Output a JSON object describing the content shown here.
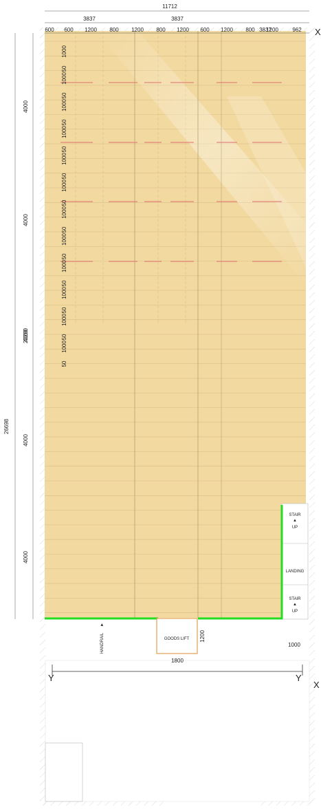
{
  "drawing": {
    "overall_width": "11712",
    "bay_width_top_left": "3837",
    "bay_width_top_mid": "3837",
    "bay_width_top_right": "3837",
    "segment_dims": [
      "600",
      "600",
      "1200",
      "800",
      "1200",
      "800",
      "1200",
      "600",
      "1200",
      "800",
      "1200",
      "962"
    ],
    "vertical_bay_labels": [
      "1000",
      "50",
      "1000",
      "50",
      "1000",
      "50",
      "1000",
      "50",
      "1000",
      "50",
      "1000",
      "50",
      "1000",
      "50",
      "1000",
      "50",
      "1000",
      "50",
      "1000",
      "50",
      "1000",
      "50",
      "1000",
      "50"
    ],
    "left_dims": [
      "4000",
      "4000",
      "4000",
      "4000",
      "4000"
    ],
    "overall_height_a": "20200",
    "overall_height_b": "26698",
    "axis_x": "X",
    "axis_y": "Y",
    "stair_up_1": "STAIR",
    "stair_up_1_dir": "UP",
    "landing": "LANDING",
    "stair_up_2": "STAIR",
    "stair_up_2_dir": "UP",
    "stair_width": "1000",
    "goods_lift": "GOODS LIFT",
    "goods_lift_width": "1800",
    "goods_lift_depth": "1200",
    "handrail": "HANDRAIL"
  },
  "colors": {
    "floor": "#f2d9a0",
    "handrail": "#22dd22",
    "lift": "#e0a050",
    "red_marks": "#e07070"
  }
}
